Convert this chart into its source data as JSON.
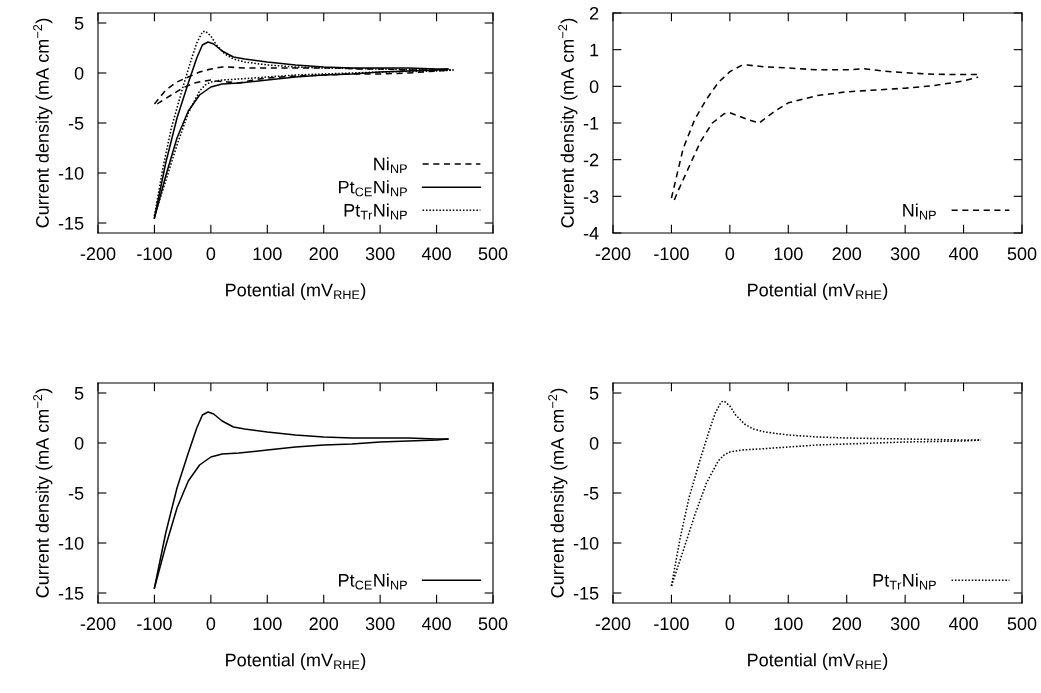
{
  "chart_data": [
    {
      "type": "line",
      "xlabel": "Potential (mV$_{RHE}$)",
      "ylabel": "Current density (mA cm$^{−2}$)",
      "xlim": [
        -200,
        500
      ],
      "xticks": [
        -200,
        -100,
        0,
        100,
        200,
        300,
        400,
        500
      ],
      "ylim": [
        -16,
        6
      ],
      "yticks": [
        -15,
        -10,
        -5,
        0,
        5
      ],
      "legend": "bottom right",
      "grid": false,
      "series": [
        {
          "name": "Ni$_{NP}$",
          "color": "#000000",
          "line_style": "dashed",
          "x": [
            -100,
            -80,
            -60,
            -40,
            -20,
            0,
            20,
            30,
            60,
            100,
            150,
            200,
            230,
            260,
            300,
            350,
            400,
            425
          ],
          "values": [
            -3.1,
            -1.7,
            -0.9,
            -0.4,
            0.1,
            0.4,
            0.6,
            0.6,
            0.5,
            0.5,
            0.5,
            0.5,
            0.5,
            0.4,
            0.4,
            0.3,
            0.3,
            0.3
          ]
        },
        {
          "color": "#000000",
          "line_style": "dashed",
          "x": [
            -95,
            -90,
            -70,
            -50,
            -30,
            -10,
            0,
            10,
            30,
            50,
            75,
            100,
            150,
            200,
            250,
            300,
            350,
            400,
            425
          ],
          "values": [
            -3.1,
            -2.9,
            -2.2,
            -1.5,
            -1.0,
            -0.8,
            -0.7,
            -0.8,
            -0.9,
            -1.0,
            -0.7,
            -0.5,
            -0.3,
            -0.2,
            -0.1,
            -0.1,
            0.0,
            0.2,
            0.3
          ]
        },
        {
          "name": "Pt$_{CE}$Ni$_{NP}$",
          "color": "#000000",
          "line_style": "solid",
          "x": [
            -100,
            -80,
            -60,
            -40,
            -25,
            -15,
            -5,
            5,
            20,
            40,
            60,
            100,
            150,
            200,
            250,
            300,
            350,
            400,
            420
          ],
          "values": [
            -14.5,
            -9,
            -4.5,
            -1,
            1.5,
            2.8,
            3.1,
            2.9,
            2.2,
            1.6,
            1.4,
            1.1,
            0.8,
            0.6,
            0.5,
            0.5,
            0.5,
            0.4,
            0.4
          ]
        },
        {
          "color": "#000000",
          "line_style": "solid",
          "x": [
            -100,
            -80,
            -60,
            -40,
            -20,
            0,
            20,
            50,
            100,
            150,
            200,
            250,
            300,
            350,
            400,
            420
          ],
          "values": [
            -14.5,
            -10.3,
            -6.5,
            -3.8,
            -2.2,
            -1.4,
            -1.1,
            -1.0,
            -0.7,
            -0.4,
            -0.2,
            -0.1,
            0.1,
            0.2,
            0.3,
            0.4
          ]
        },
        {
          "name": "Pt$_{Tr}$Ni$_{NP}$",
          "color": "#000000",
          "line_style": "dotted",
          "x": [
            -100,
            -85,
            -70,
            -50,
            -35,
            -25,
            -15,
            -10,
            0,
            10,
            25,
            40,
            60,
            100,
            150,
            200,
            300,
            400,
            430
          ],
          "values": [
            -14.3,
            -9.5,
            -5.5,
            -1.5,
            1.3,
            3.0,
            4.1,
            4.2,
            3.7,
            2.8,
            1.9,
            1.4,
            1.1,
            0.8,
            0.6,
            0.5,
            0.4,
            0.3,
            0.3
          ]
        },
        {
          "color": "#000000",
          "line_style": "dotted",
          "x": [
            -100,
            -80,
            -60,
            -40,
            -20,
            -10,
            0,
            20,
            50,
            100,
            150,
            200,
            300,
            400,
            430
          ],
          "values": [
            -14.3,
            -10.8,
            -7.2,
            -4,
            -1.8,
            -1.2,
            -0.9,
            -0.7,
            -0.6,
            -0.4,
            -0.2,
            -0.1,
            0.1,
            0.2,
            0.3
          ]
        }
      ]
    },
    {
      "type": "line",
      "xlabel": "Potential (mV$_{RHE}$)",
      "ylabel": "Current density (mA cm$^{−2}$)",
      "xlim": [
        -200,
        500
      ],
      "xticks": [
        -200,
        -100,
        0,
        100,
        200,
        300,
        400,
        500
      ],
      "ylim": [
        -4,
        2
      ],
      "yticks": [
        -4,
        -3,
        -2,
        -1,
        0,
        1,
        2
      ],
      "legend": "bottom right",
      "grid": false,
      "series": [
        {
          "name": "Ni$_{NP}$",
          "color": "#000000",
          "line_style": "dashed",
          "x": [
            -100,
            -80,
            -60,
            -40,
            -20,
            0,
            20,
            30,
            60,
            100,
            150,
            200,
            230,
            260,
            300,
            350,
            400,
            425
          ],
          "values": [
            -3.05,
            -1.7,
            -0.9,
            -0.35,
            0.1,
            0.4,
            0.57,
            0.58,
            0.53,
            0.5,
            0.45,
            0.45,
            0.48,
            0.42,
            0.37,
            0.33,
            0.32,
            0.32
          ]
        },
        {
          "color": "#000000",
          "line_style": "dashed",
          "x": [
            -95,
            -90,
            -70,
            -50,
            -30,
            -10,
            0,
            10,
            30,
            50,
            75,
            100,
            150,
            200,
            250,
            300,
            350,
            400,
            425
          ],
          "values": [
            -3.1,
            -2.9,
            -2.2,
            -1.5,
            -1.0,
            -0.75,
            -0.72,
            -0.78,
            -0.9,
            -1.0,
            -0.7,
            -0.45,
            -0.25,
            -0.15,
            -0.1,
            -0.05,
            0.02,
            0.15,
            0.25
          ]
        }
      ]
    },
    {
      "type": "line",
      "xlabel": "Potential (mV$_{RHE}$)",
      "ylabel": "Current density (mA cm$^{−2}$)",
      "xlim": [
        -200,
        500
      ],
      "xticks": [
        -200,
        -100,
        0,
        100,
        200,
        300,
        400,
        500
      ],
      "ylim": [
        -16,
        6
      ],
      "yticks": [
        -15,
        -10,
        -5,
        0,
        5
      ],
      "legend": "bottom right",
      "grid": false,
      "series": [
        {
          "name": "Pt$_{CE}$Ni$_{NP}$",
          "color": "#000000",
          "line_style": "solid",
          "x": [
            -100,
            -80,
            -60,
            -40,
            -25,
            -15,
            -5,
            5,
            20,
            40,
            60,
            100,
            150,
            200,
            250,
            300,
            350,
            400,
            420
          ],
          "values": [
            -14.5,
            -9,
            -4.5,
            -1,
            1.5,
            2.8,
            3.1,
            2.9,
            2.2,
            1.6,
            1.4,
            1.1,
            0.8,
            0.6,
            0.5,
            0.5,
            0.5,
            0.4,
            0.4
          ]
        },
        {
          "color": "#000000",
          "line_style": "solid",
          "x": [
            -100,
            -80,
            -60,
            -40,
            -20,
            0,
            20,
            50,
            100,
            150,
            200,
            250,
            300,
            350,
            400,
            420
          ],
          "values": [
            -14.5,
            -10.3,
            -6.5,
            -3.8,
            -2.2,
            -1.4,
            -1.1,
            -1.0,
            -0.7,
            -0.4,
            -0.2,
            -0.1,
            0.1,
            0.2,
            0.3,
            0.4
          ]
        }
      ]
    },
    {
      "type": "line",
      "xlabel": "Potential (mV$_{RHE}$)",
      "ylabel": "Current density (mA cm$^{−2}$)",
      "xlim": [
        -200,
        500
      ],
      "xticks": [
        -200,
        -100,
        0,
        100,
        200,
        300,
        400,
        500
      ],
      "ylim": [
        -16,
        6
      ],
      "yticks": [
        -15,
        -10,
        -5,
        0,
        5
      ],
      "legend": "bottom right",
      "grid": false,
      "series": [
        {
          "name": "Pt$_{Tr}$Ni$_{NP}$",
          "color": "#000000",
          "line_style": "dotted",
          "x": [
            -100,
            -85,
            -70,
            -50,
            -35,
            -25,
            -15,
            -10,
            0,
            10,
            25,
            40,
            60,
            100,
            150,
            200,
            300,
            400,
            430
          ],
          "values": [
            -14.3,
            -9.5,
            -5.5,
            -1.5,
            1.3,
            3.0,
            4.1,
            4.2,
            3.7,
            2.8,
            1.9,
            1.4,
            1.1,
            0.8,
            0.6,
            0.5,
            0.4,
            0.3,
            0.3
          ]
        },
        {
          "color": "#000000",
          "line_style": "dotted",
          "x": [
            -100,
            -80,
            -60,
            -40,
            -20,
            -10,
            0,
            20,
            50,
            100,
            150,
            200,
            300,
            400,
            430
          ],
          "values": [
            -14.3,
            -10.8,
            -7.2,
            -4,
            -1.8,
            -1.2,
            -0.9,
            -0.7,
            -0.6,
            -0.4,
            -0.2,
            -0.1,
            0.1,
            0.2,
            0.3
          ]
        }
      ]
    }
  ]
}
